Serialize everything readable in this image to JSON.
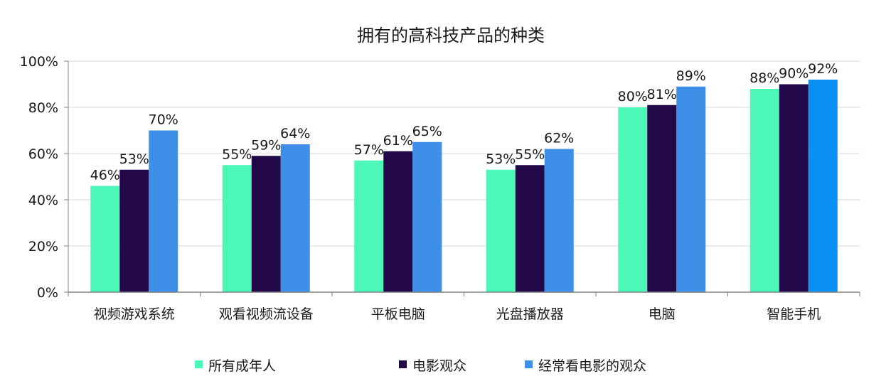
{
  "chart_data": {
    "type": "bar",
    "title": "拥有的高科技产品的种类",
    "categories": [
      "视频游戏系统",
      "观看视频流设备",
      "平板电脑",
      "光盘播放器",
      "电脑",
      "智能手机"
    ],
    "series": [
      {
        "name": "所有成年人",
        "color": "#4cf7b8",
        "values": [
          46,
          55,
          57,
          53,
          80,
          88
        ],
        "labels": [
          "46%",
          "55%",
          "57%",
          "53%",
          "80%",
          "88%"
        ]
      },
      {
        "name": "电影观众",
        "color": "#220848",
        "values": [
          53,
          59,
          61,
          55,
          81,
          90
        ],
        "labels": [
          "53%",
          "59%",
          "61%",
          "55%",
          "81%",
          "90%"
        ]
      },
      {
        "name": "经常看电影的观众",
        "color": "#3d8fe8",
        "values": [
          70,
          64,
          65,
          62,
          89,
          92
        ],
        "labels": [
          "70%",
          "64%",
          "65%",
          "62%",
          "89%",
          "92%"
        ]
      }
    ],
    "highlight_color": "#0a8ff2",
    "ylim": [
      0,
      100
    ],
    "yticks": [
      0,
      20,
      40,
      60,
      80,
      100
    ],
    "ytick_labels": [
      "0%",
      "20%",
      "40%",
      "60%",
      "80%",
      "100%"
    ],
    "grid": true,
    "legend": "bottom",
    "grid_color": "#d9d9d9",
    "axis_color": "#808080"
  }
}
